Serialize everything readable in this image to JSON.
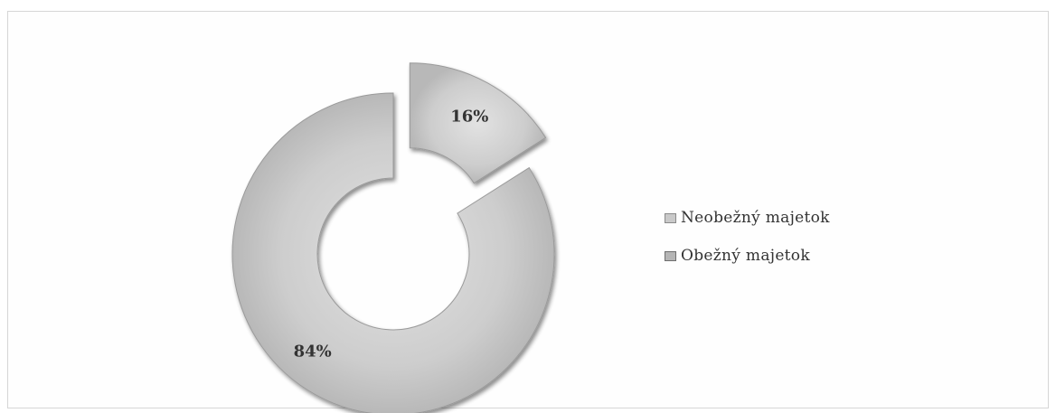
{
  "chart_data": {
    "type": "pie",
    "variant": "exploded-doughnut",
    "title": "",
    "series": [
      {
        "name": "Neobežný majetok",
        "value": 16,
        "label": "16%",
        "color": "#cfcfcf",
        "exploded": true
      },
      {
        "name": "Obežný majetok",
        "value": 84,
        "label": "84%",
        "color": "#c4c4c4",
        "exploded": false
      }
    ],
    "legend": {
      "position": "right"
    }
  }
}
